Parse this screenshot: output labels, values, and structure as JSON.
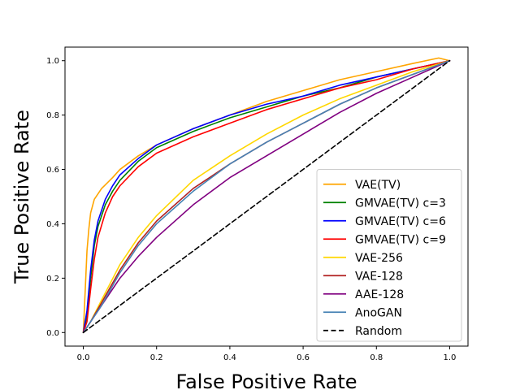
{
  "chart_data": {
    "type": "line",
    "title": "",
    "xlabel": "False Positive Rate",
    "ylabel": "True Positive Rate",
    "xlim": [
      -0.05,
      1.05
    ],
    "ylim": [
      -0.05,
      1.05
    ],
    "xticks": [
      0.0,
      0.2,
      0.4,
      0.6,
      0.8,
      1.0
    ],
    "xtick_labels": [
      "0.0",
      "0.2",
      "0.4",
      "0.6",
      "0.8",
      "1.0"
    ],
    "yticks": [
      0.0,
      0.2,
      0.4,
      0.6,
      0.8,
      1.0
    ],
    "ytick_labels": [
      "0.0",
      "0.2",
      "0.4",
      "0.6",
      "0.8",
      "1.0"
    ],
    "grid": false,
    "legend_position": "lower-right",
    "series": [
      {
        "name": "VAE(TV)",
        "color": "#ffa500",
        "style": "solid",
        "x": [
          0.0,
          0.005,
          0.01,
          0.015,
          0.02,
          0.03,
          0.05,
          0.08,
          0.1,
          0.15,
          0.2,
          0.3,
          0.4,
          0.5,
          0.6,
          0.7,
          0.8,
          0.9,
          0.97,
          1.0
        ],
        "y": [
          0.0,
          0.15,
          0.3,
          0.38,
          0.44,
          0.49,
          0.53,
          0.57,
          0.6,
          0.65,
          0.69,
          0.75,
          0.8,
          0.85,
          0.89,
          0.93,
          0.96,
          0.99,
          1.01,
          1.0
        ]
      },
      {
        "name": "GMVAE(TV) c=3",
        "color": "#008000",
        "style": "solid",
        "x": [
          0.0,
          0.01,
          0.02,
          0.03,
          0.04,
          0.06,
          0.08,
          0.1,
          0.15,
          0.2,
          0.3,
          0.4,
          0.5,
          0.6,
          0.7,
          0.8,
          0.9,
          1.0
        ],
        "y": [
          0.0,
          0.06,
          0.2,
          0.32,
          0.39,
          0.47,
          0.52,
          0.56,
          0.63,
          0.68,
          0.74,
          0.79,
          0.83,
          0.87,
          0.9,
          0.94,
          0.97,
          1.0
        ]
      },
      {
        "name": "GMVAE(TV) c=6",
        "color": "#0000ff",
        "style": "solid",
        "x": [
          0.0,
          0.01,
          0.02,
          0.03,
          0.04,
          0.06,
          0.08,
          0.1,
          0.15,
          0.2,
          0.3,
          0.4,
          0.5,
          0.6,
          0.7,
          0.8,
          0.9,
          1.0
        ],
        "y": [
          0.0,
          0.08,
          0.23,
          0.34,
          0.41,
          0.49,
          0.54,
          0.58,
          0.64,
          0.69,
          0.75,
          0.8,
          0.84,
          0.87,
          0.91,
          0.94,
          0.97,
          1.0
        ]
      },
      {
        "name": "GMVAE(TV) c=9",
        "color": "#ff0000",
        "style": "solid",
        "x": [
          0.0,
          0.01,
          0.02,
          0.03,
          0.04,
          0.06,
          0.08,
          0.1,
          0.15,
          0.2,
          0.3,
          0.4,
          0.5,
          0.6,
          0.7,
          0.8,
          0.9,
          1.0
        ],
        "y": [
          0.0,
          0.04,
          0.16,
          0.27,
          0.35,
          0.44,
          0.5,
          0.54,
          0.61,
          0.66,
          0.72,
          0.77,
          0.82,
          0.86,
          0.9,
          0.93,
          0.97,
          1.0
        ]
      },
      {
        "name": "VAE-256",
        "color": "#ffd700",
        "style": "solid",
        "x": [
          0.0,
          0.02,
          0.05,
          0.1,
          0.15,
          0.2,
          0.3,
          0.4,
          0.5,
          0.6,
          0.7,
          0.8,
          0.9,
          1.0
        ],
        "y": [
          0.0,
          0.04,
          0.12,
          0.25,
          0.35,
          0.43,
          0.56,
          0.65,
          0.73,
          0.8,
          0.86,
          0.91,
          0.96,
          1.0
        ]
      },
      {
        "name": "VAE-128",
        "color": "#b22222",
        "style": "solid",
        "x": [
          0.0,
          0.02,
          0.05,
          0.1,
          0.15,
          0.2,
          0.3,
          0.4,
          0.5,
          0.6,
          0.7,
          0.8,
          0.9,
          1.0
        ],
        "y": [
          0.0,
          0.04,
          0.11,
          0.23,
          0.33,
          0.41,
          0.53,
          0.62,
          0.7,
          0.77,
          0.84,
          0.9,
          0.95,
          1.0
        ]
      },
      {
        "name": "AAE-128",
        "color": "#800080",
        "style": "solid",
        "x": [
          0.0,
          0.02,
          0.05,
          0.1,
          0.15,
          0.2,
          0.3,
          0.4,
          0.5,
          0.6,
          0.7,
          0.8,
          0.9,
          1.0
        ],
        "y": [
          0.0,
          0.04,
          0.1,
          0.2,
          0.28,
          0.35,
          0.47,
          0.57,
          0.65,
          0.73,
          0.81,
          0.88,
          0.94,
          1.0
        ]
      },
      {
        "name": "AnoGAN",
        "color": "#4682b4",
        "style": "solid",
        "x": [
          0.0,
          0.02,
          0.05,
          0.1,
          0.15,
          0.2,
          0.3,
          0.4,
          0.5,
          0.6,
          0.7,
          0.8,
          0.9,
          1.0
        ],
        "y": [
          0.0,
          0.04,
          0.1,
          0.22,
          0.32,
          0.4,
          0.52,
          0.62,
          0.7,
          0.77,
          0.84,
          0.9,
          0.95,
          1.0
        ]
      },
      {
        "name": "Random",
        "color": "#000000",
        "style": "dashed",
        "x": [
          0.0,
          1.0
        ],
        "y": [
          0.0,
          1.0
        ]
      }
    ]
  }
}
